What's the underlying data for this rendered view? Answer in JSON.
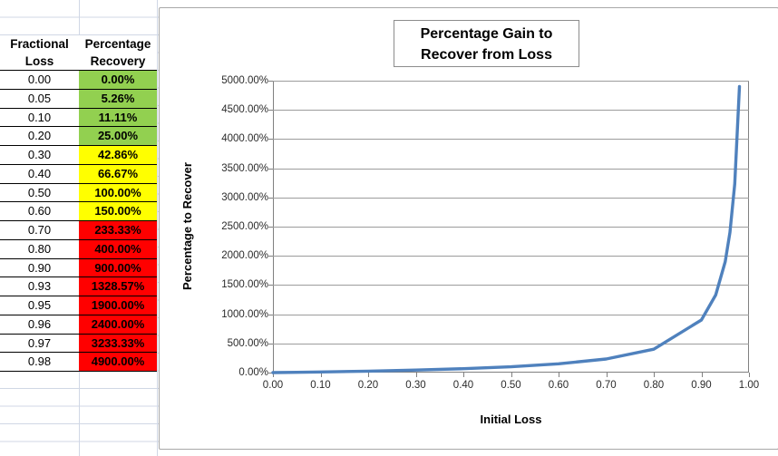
{
  "sheet": {
    "columns": {
      "col_a_header_line1": "Fractional",
      "col_a_header_line2": "Loss",
      "col_b_header_line1": "Percentage",
      "col_b_header_line2": "Recovery"
    },
    "rows": [
      {
        "loss": "0.00",
        "recovery": "0.00%",
        "fill": "green"
      },
      {
        "loss": "0.05",
        "recovery": "5.26%",
        "fill": "green"
      },
      {
        "loss": "0.10",
        "recovery": "11.11%",
        "fill": "green"
      },
      {
        "loss": "0.20",
        "recovery": "25.00%",
        "fill": "green"
      },
      {
        "loss": "0.30",
        "recovery": "42.86%",
        "fill": "yellow"
      },
      {
        "loss": "0.40",
        "recovery": "66.67%",
        "fill": "yellow"
      },
      {
        "loss": "0.50",
        "recovery": "100.00%",
        "fill": "yellow"
      },
      {
        "loss": "0.60",
        "recovery": "150.00%",
        "fill": "yellow"
      },
      {
        "loss": "0.70",
        "recovery": "233.33%",
        "fill": "red"
      },
      {
        "loss": "0.80",
        "recovery": "400.00%",
        "fill": "red"
      },
      {
        "loss": "0.90",
        "recovery": "900.00%",
        "fill": "red"
      },
      {
        "loss": "0.93",
        "recovery": "1328.57%",
        "fill": "red"
      },
      {
        "loss": "0.95",
        "recovery": "1900.00%",
        "fill": "red"
      },
      {
        "loss": "0.96",
        "recovery": "2400.00%",
        "fill": "red"
      },
      {
        "loss": "0.97",
        "recovery": "3233.33%",
        "fill": "red"
      },
      {
        "loss": "0.98",
        "recovery": "4900.00%",
        "fill": "red"
      }
    ],
    "fill_colors": {
      "green": "#92D050",
      "yellow": "#FFFF00",
      "red": "#FF0000"
    },
    "gridline_color": "#D0D7E5"
  },
  "chart_data": {
    "type": "line",
    "title": "Percentage Gain to Recover from Loss",
    "title_lines": [
      "Percentage Gain to",
      "Recover from Loss"
    ],
    "xlabel": "Initial Loss",
    "ylabel": "Percentage to Recover",
    "series": [
      {
        "x": [
          0.0,
          0.05,
          0.1,
          0.2,
          0.3,
          0.4,
          0.5,
          0.6,
          0.7,
          0.8,
          0.9,
          0.93,
          0.95,
          0.96,
          0.97,
          0.98
        ],
        "y": [
          0,
          5.26,
          11.11,
          25,
          42.86,
          66.67,
          100,
          150,
          233.33,
          400,
          900,
          1328.57,
          1900,
          2400,
          3233.33,
          4900
        ]
      }
    ],
    "xlim": [
      0,
      1
    ],
    "ylim": [
      0,
      5000
    ],
    "x_ticks": [
      {
        "value": 0.0,
        "label": "0.00"
      },
      {
        "value": 0.1,
        "label": "0.10"
      },
      {
        "value": 0.2,
        "label": "0.20"
      },
      {
        "value": 0.3,
        "label": "0.30"
      },
      {
        "value": 0.4,
        "label": "0.40"
      },
      {
        "value": 0.5,
        "label": "0.50"
      },
      {
        "value": 0.6,
        "label": "0.60"
      },
      {
        "value": 0.7,
        "label": "0.70"
      },
      {
        "value": 0.8,
        "label": "0.80"
      },
      {
        "value": 0.9,
        "label": "0.90"
      },
      {
        "value": 1.0,
        "label": "1.00"
      }
    ],
    "y_ticks": [
      {
        "value": 0,
        "label": "0.00%"
      },
      {
        "value": 500,
        "label": "500.00%"
      },
      {
        "value": 1000,
        "label": "1000.00%"
      },
      {
        "value": 1500,
        "label": "1500.00%"
      },
      {
        "value": 2000,
        "label": "2000.00%"
      },
      {
        "value": 2500,
        "label": "2500.00%"
      },
      {
        "value": 3000,
        "label": "3000.00%"
      },
      {
        "value": 3500,
        "label": "3500.00%"
      },
      {
        "value": 4000,
        "label": "4000.00%"
      },
      {
        "value": 4500,
        "label": "4500.00%"
      },
      {
        "value": 5000,
        "label": "5000.00%"
      }
    ],
    "grid": true,
    "legend": false,
    "line_color": "#4F81BD",
    "gridline_color": "#9C9C9C",
    "axis_color": "#808080"
  }
}
